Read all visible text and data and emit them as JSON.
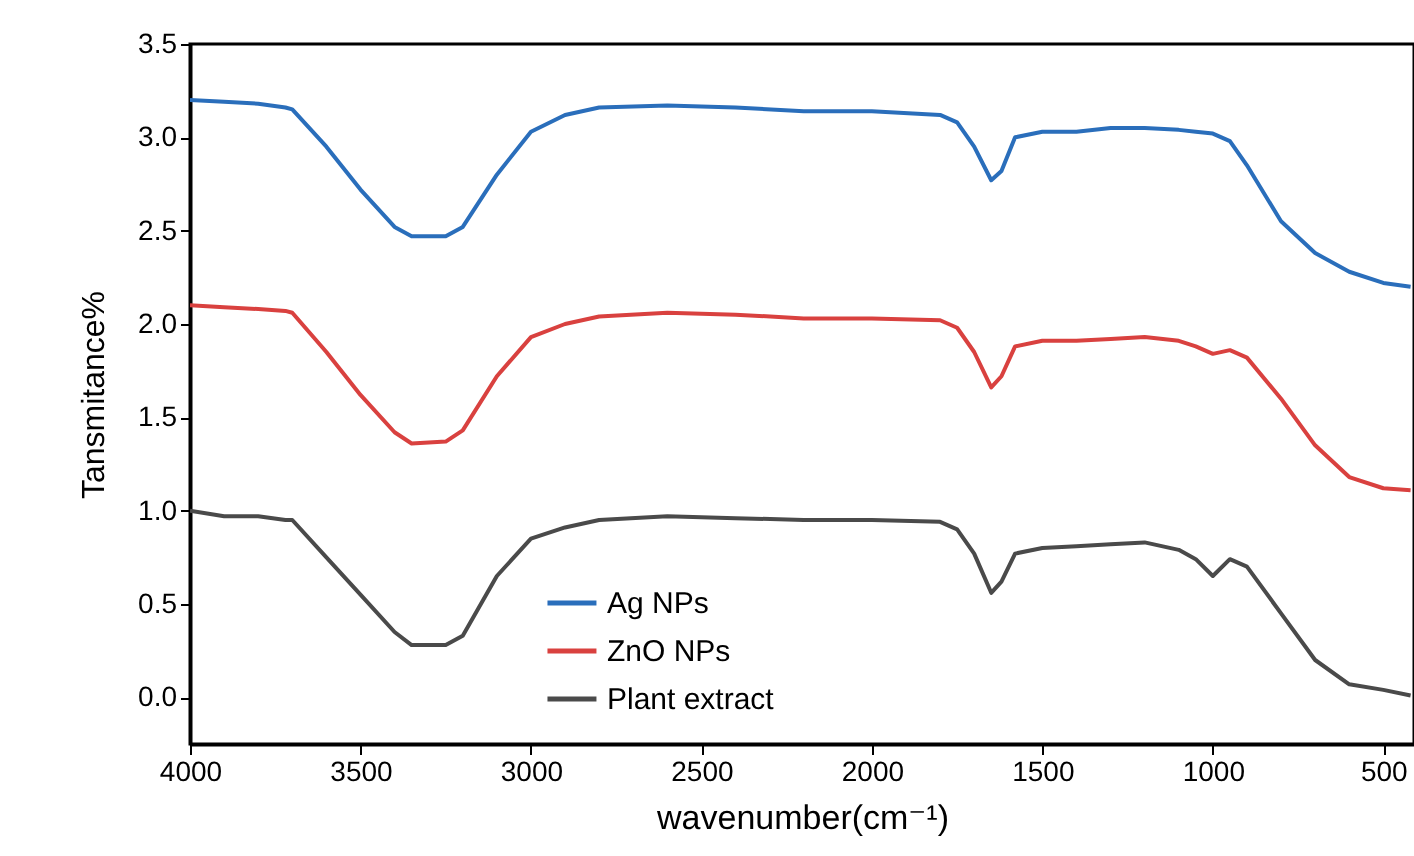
{
  "chart_data": {
    "type": "line",
    "xlabel": "wavenumber(cm⁻¹)",
    "ylabel": "Tansmitance%",
    "xlim": [
      4000,
      410
    ],
    "xticks": [
      {
        "value": 4000,
        "label": "4000"
      },
      {
        "value": 3500,
        "label": "3500"
      },
      {
        "value": 3000,
        "label": "3000"
      },
      {
        "value": 2500,
        "label": "2500"
      },
      {
        "value": 2000,
        "label": "2000"
      },
      {
        "value": 1500,
        "label": "1500"
      },
      {
        "value": 1000,
        "label": "1000"
      },
      500
    ],
    "ylim": [
      -0.25,
      3.5
    ],
    "yticks": [
      {
        "value": 0,
        "label": "0.0"
      },
      0.5,
      {
        "value": 1,
        "label": "1.0"
      },
      1.5,
      {
        "value": 2,
        "label": "2.0"
      },
      2.5,
      {
        "value": 3,
        "label": "3.0"
      },
      3.5
    ],
    "legend": "bottom",
    "grid": false,
    "marker": "none",
    "line_style": "solid",
    "x": [
      4000,
      3900,
      3800,
      3720,
      3700,
      3600,
      3500,
      3400,
      3350,
      3250,
      3200,
      3100,
      3000,
      2900,
      2800,
      2600,
      2400,
      2200,
      2000,
      1800,
      1750,
      1700,
      1650,
      1620,
      1580,
      1500,
      1400,
      1300,
      1200,
      1100,
      1050,
      1000,
      950,
      900,
      800,
      700,
      600,
      500,
      420
    ],
    "series": [
      {
        "name": "Ag NPs",
        "color": "#2a6ebb",
        "values": [
          3.2,
          3.19,
          3.18,
          3.16,
          3.15,
          2.95,
          2.72,
          2.52,
          2.47,
          2.47,
          2.52,
          2.8,
          3.03,
          3.12,
          3.16,
          3.17,
          3.16,
          3.14,
          3.14,
          3.12,
          3.08,
          2.95,
          2.77,
          2.82,
          3.0,
          3.03,
          3.03,
          3.05,
          3.05,
          3.04,
          3.03,
          3.02,
          2.98,
          2.85,
          2.55,
          2.38,
          2.28,
          2.22,
          2.2
        ]
      },
      {
        "name": "ZnO NPs",
        "color": "#d9413f",
        "values": [
          2.1,
          2.09,
          2.08,
          2.07,
          2.06,
          1.85,
          1.62,
          1.42,
          1.36,
          1.37,
          1.43,
          1.72,
          1.93,
          2.0,
          2.04,
          2.06,
          2.05,
          2.03,
          2.03,
          2.02,
          1.98,
          1.85,
          1.66,
          1.72,
          1.88,
          1.91,
          1.91,
          1.92,
          1.93,
          1.91,
          1.88,
          1.84,
          1.86,
          1.82,
          1.6,
          1.35,
          1.18,
          1.12,
          1.11
        ]
      },
      {
        "name": "Plant extract",
        "color": "#4a4a4a",
        "values": [
          1.0,
          0.97,
          0.97,
          0.95,
          0.95,
          0.75,
          0.55,
          0.35,
          0.28,
          0.28,
          0.33,
          0.65,
          0.85,
          0.91,
          0.95,
          0.97,
          0.96,
          0.95,
          0.95,
          0.94,
          0.9,
          0.77,
          0.56,
          0.62,
          0.77,
          0.8,
          0.81,
          0.82,
          0.83,
          0.79,
          0.74,
          0.65,
          0.74,
          0.7,
          0.45,
          0.2,
          0.07,
          0.04,
          0.01
        ]
      }
    ]
  }
}
